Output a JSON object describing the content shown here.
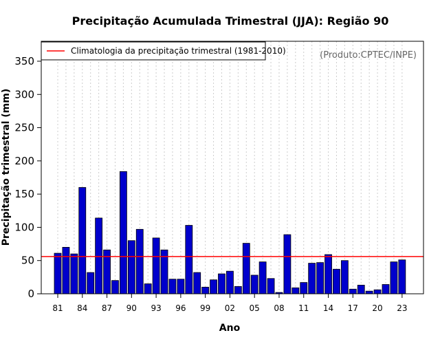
{
  "chart_data": {
    "type": "bar",
    "title": "Precipitação Acumulada Trimestral (JJA): Região 90",
    "xlabel": "Ano",
    "ylabel": "Precipitação trimestral (mm)",
    "ylim": [
      0,
      380
    ],
    "yticks": [
      0,
      50,
      100,
      150,
      200,
      250,
      300,
      350
    ],
    "xtick_years": [
      1981,
      1984,
      1987,
      1990,
      1993,
      1996,
      1999,
      2002,
      2005,
      2008,
      2011,
      2014,
      2017,
      2020,
      2023
    ],
    "xtick_labels": [
      "81",
      "84",
      "87",
      "90",
      "93",
      "96",
      "99",
      "02",
      "05",
      "08",
      "11",
      "14",
      "17",
      "20",
      "23"
    ],
    "categories": [
      1981,
      1982,
      1983,
      1984,
      1985,
      1986,
      1987,
      1988,
      1989,
      1990,
      1991,
      1992,
      1993,
      1994,
      1995,
      1996,
      1997,
      1998,
      1999,
      2000,
      2001,
      2002,
      2003,
      2004,
      2005,
      2006,
      2007,
      2008,
      2009,
      2010,
      2011,
      2012,
      2013,
      2014,
      2015,
      2016,
      2017,
      2018,
      2019,
      2020,
      2021,
      2022,
      2023
    ],
    "values": [
      61,
      70,
      60,
      160,
      32,
      114,
      66,
      20,
      184,
      80,
      97,
      15,
      84,
      66,
      22,
      22,
      103,
      32,
      10,
      21,
      30,
      34,
      11,
      76,
      28,
      48,
      23,
      2,
      89,
      9,
      17,
      46,
      47,
      59,
      37,
      50,
      7,
      13,
      4,
      6,
      14,
      48,
      51
    ],
    "climatology": 56,
    "legend": {
      "label": "Climatologia da precipitação trimestral (1981-2010)",
      "position": "top-left"
    },
    "credit": "(Produto:CPTEC/INPE)",
    "colors": {
      "bar": "#0000cc",
      "bar_edge": "#000000",
      "climatology": "#ff0000",
      "grid": "#cccccc"
    }
  }
}
